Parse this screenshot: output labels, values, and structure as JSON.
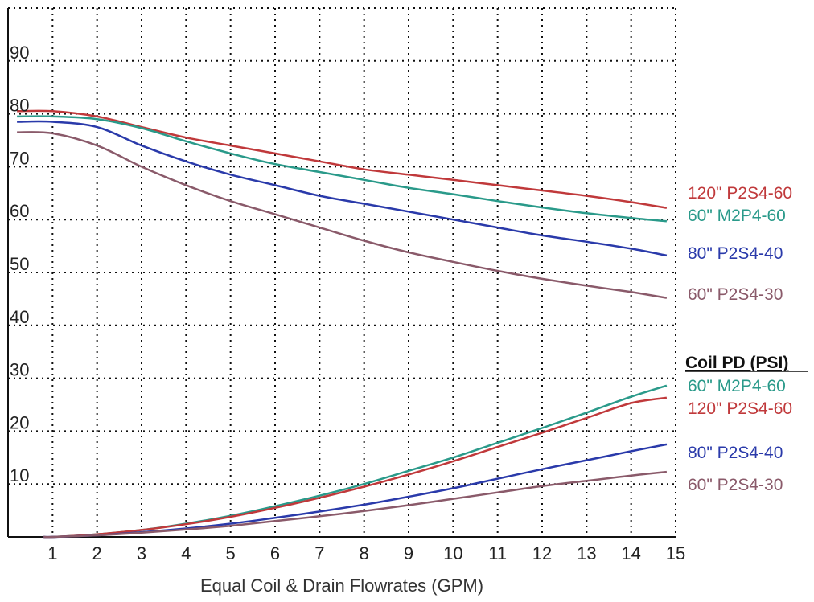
{
  "chart_data": {
    "type": "line",
    "xlabel": "Equal Coil & Drain Flowrates (GPM)",
    "ylabel": "",
    "x_ticks": [
      "1",
      "2",
      "3",
      "4",
      "5",
      "6",
      "7",
      "8",
      "9",
      "10",
      "11",
      "12",
      "13",
      "14",
      "15"
    ],
    "y_ticks": [
      "10",
      "20",
      "30",
      "40",
      "50",
      "60",
      "70",
      "80",
      "90"
    ],
    "xlim": [
      0,
      15
    ],
    "ylim": [
      0,
      100
    ],
    "grid": true,
    "legend_title": "Coil PD (PSI)",
    "series_groups": [
      {
        "series": [
          {
            "name": "120\" P2S4-60",
            "color": "#c0393b",
            "x": [
              0.2,
              1,
              2,
              3,
              4,
              5,
              6,
              7,
              8,
              9,
              10,
              11,
              12,
              13,
              14,
              14.8
            ],
            "y": [
              80.5,
              80.5,
              79.5,
              77.5,
              75.5,
              74,
              72.5,
              71,
              69.5,
              68.5,
              67.5,
              66.5,
              65.5,
              64.5,
              63.3,
              62.2
            ]
          },
          {
            "name": "60\" M2P4-60",
            "color": "#2a9a8a",
            "x": [
              0.2,
              1,
              2,
              3,
              4,
              5,
              6,
              7,
              8,
              9,
              10,
              11,
              12,
              13,
              14,
              14.8
            ],
            "y": [
              79.5,
              79.5,
              79,
              77.3,
              74.8,
              72.5,
              70.5,
              69,
              67.5,
              66,
              64.8,
              63.5,
              62.3,
              61.2,
              60.3,
              59.7
            ]
          },
          {
            "name": "80\" P2S4-40",
            "color": "#2a3aaa",
            "x": [
              0.2,
              1,
              2,
              3,
              4,
              5,
              6,
              7,
              8,
              9,
              10,
              11,
              12,
              13,
              14,
              14.8
            ],
            "y": [
              78.5,
              78.5,
              77.5,
              74,
              71,
              68.5,
              66.5,
              64.5,
              63,
              61.5,
              60,
              58.5,
              57,
              55.8,
              54.5,
              53.2
            ]
          },
          {
            "name": "60\" P2S4-30",
            "color": "#8a5a6a",
            "x": [
              0.2,
              1,
              2,
              3,
              4,
              5,
              6,
              7,
              8,
              9,
              10,
              11,
              12,
              13,
              14,
              14.8
            ],
            "y": [
              76.5,
              76.3,
              74,
              70,
              66.5,
              63.5,
              61,
              58.5,
              56,
              53.8,
              52,
              50.3,
              48.8,
              47.5,
              46.3,
              45.2
            ]
          }
        ]
      },
      {
        "series": [
          {
            "name": "60\" M2P4-60",
            "color": "#2a9a8a",
            "x": [
              0.8,
              1,
              2,
              3,
              4,
              5,
              6,
              7,
              8,
              9,
              10,
              11,
              12,
              13,
              14,
              14.8
            ],
            "y": [
              0,
              0,
              0.5,
              1.3,
              2.5,
              4,
              5.8,
              7.8,
              10,
              12.5,
              15,
              17.8,
              20.6,
              23.5,
              26.5,
              28.6
            ]
          },
          {
            "name": "120\" P2S4-60",
            "color": "#c0393b",
            "x": [
              0.8,
              1,
              2,
              3,
              4,
              5,
              6,
              7,
              8,
              9,
              10,
              11,
              12,
              13,
              14,
              14.8
            ],
            "y": [
              0,
              0,
              0.5,
              1.3,
              2.4,
              3.8,
              5.5,
              7.4,
              9.5,
              11.8,
              14.3,
              17,
              19.7,
              22.5,
              25.3,
              26.3
            ]
          },
          {
            "name": "80\" P2S4-40",
            "color": "#2a3aaa",
            "x": [
              0.8,
              1,
              2,
              3,
              4,
              5,
              6,
              7,
              8,
              9,
              10,
              11,
              12,
              13,
              14,
              14.8
            ],
            "y": [
              0,
              0,
              0.3,
              0.9,
              1.6,
              2.5,
              3.6,
              4.8,
              6.1,
              7.6,
              9.2,
              11,
              12.8,
              14.5,
              16.2,
              17.5
            ]
          },
          {
            "name": "60\" P2S4-30",
            "color": "#8a5a6a",
            "x": [
              0.8,
              1,
              2,
              3,
              4,
              5,
              6,
              7,
              8,
              9,
              10,
              11,
              12,
              13,
              14,
              14.8
            ],
            "y": [
              0,
              0,
              0.3,
              0.8,
              1.4,
              2.1,
              3,
              3.9,
              4.9,
              6,
              7.2,
              8.4,
              9.6,
              10.6,
              11.6,
              12.3
            ]
          }
        ]
      }
    ]
  }
}
